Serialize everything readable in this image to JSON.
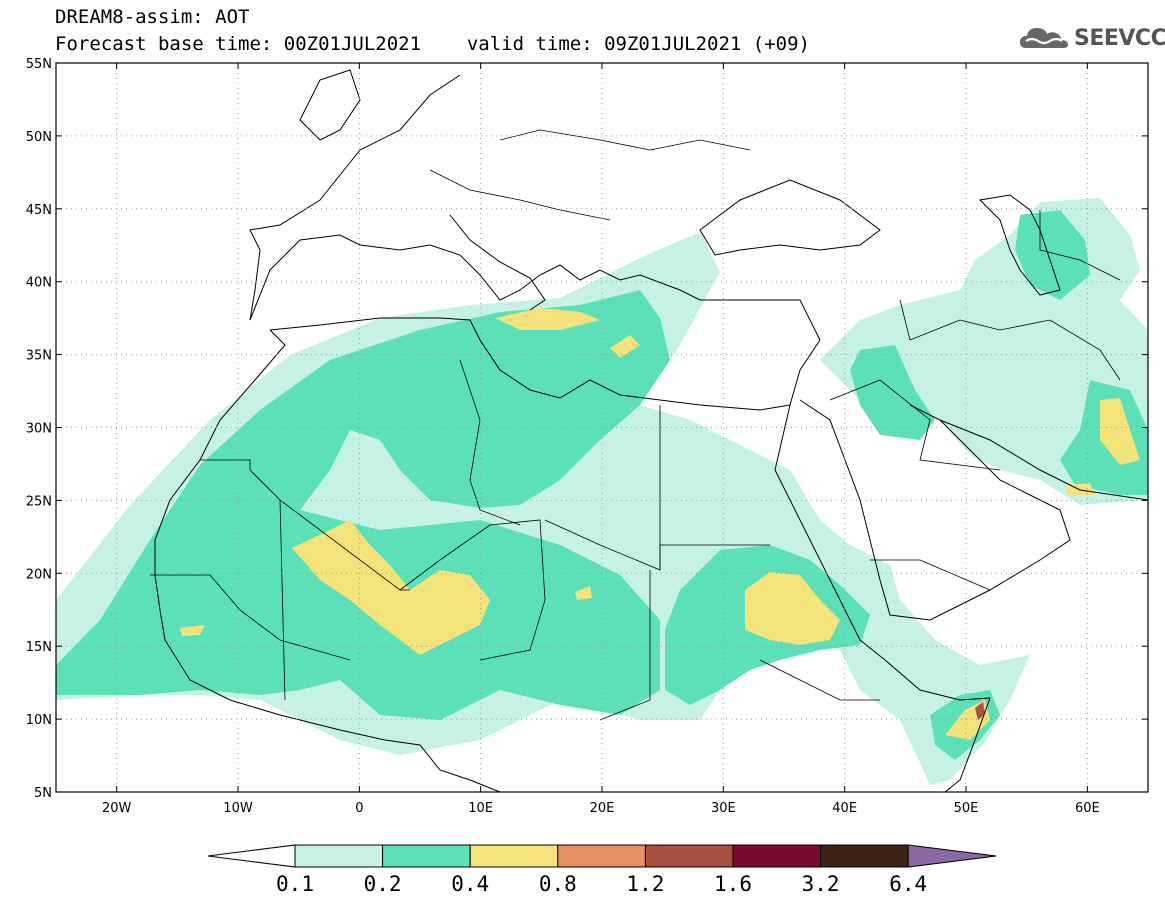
{
  "header": {
    "model_title": "DREAM8-assim: AOT",
    "base_time_label": "Forecast base time: 00Z01JUL2021",
    "valid_time_label": "valid time: 09Z01JUL2021 (+09)",
    "logo_text": "SEEVCCC"
  },
  "map": {
    "lon_range": [
      -25,
      65
    ],
    "lat_range": [
      5,
      55
    ],
    "lat_ticks": [
      "55N",
      "50N",
      "45N",
      "40N",
      "35N",
      "30N",
      "25N",
      "20N",
      "15N",
      "10N",
      "5N"
    ],
    "lon_ticks": [
      "20W",
      "10W",
      "0",
      "10E",
      "20E",
      "30E",
      "40E",
      "50E",
      "60E"
    ],
    "grid": "dotted"
  },
  "colorbar": {
    "levels": [
      "0.1",
      "0.2",
      "0.4",
      "0.8",
      "1.2",
      "1.6",
      "3.2",
      "6.4"
    ],
    "colors": [
      "#c6f2e6",
      "#5ce0b7",
      "#f4e27a",
      "#e89064",
      "#a95040",
      "#7a0a2e",
      "#3b2416",
      "#8b6aa4"
    ]
  }
}
